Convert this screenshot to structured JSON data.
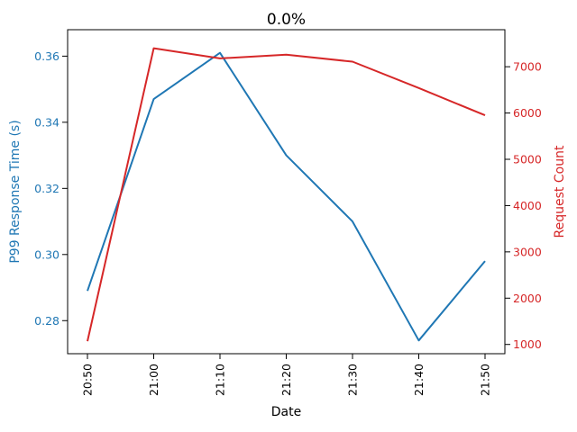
{
  "title": "0.0%",
  "chart_data": {
    "type": "line",
    "title": "0.0%",
    "xlabel": "Date",
    "grid": false,
    "legend": "none",
    "categories": [
      "20:50",
      "21:00",
      "21:10",
      "21:20",
      "21:30",
      "21:40",
      "21:50"
    ],
    "left_axis": {
      "label": "P99 Response Time (s)",
      "color": "#1f77b4",
      "ticks": [
        0.28,
        0.3,
        0.32,
        0.34,
        0.36
      ],
      "tick_labels": [
        "0.28",
        "0.30",
        "0.32",
        "0.34",
        "0.36"
      ],
      "ylim": [
        0.27,
        0.368
      ]
    },
    "right_axis": {
      "label": "Request Count",
      "color": "#d62728",
      "ticks": [
        1000,
        2000,
        3000,
        4000,
        5000,
        6000,
        7000
      ],
      "tick_labels": [
        "1000",
        "2000",
        "3000",
        "4000",
        "5000",
        "6000",
        "7000"
      ],
      "ylim": [
        800,
        7800
      ]
    },
    "series": [
      {
        "name": "P99 Response Time (s)",
        "axis": "left",
        "color": "#1f77b4",
        "values": [
          0.289,
          0.347,
          0.361,
          0.33,
          0.31,
          0.274,
          0.298
        ]
      },
      {
        "name": "Request Count",
        "axis": "right",
        "color": "#d62728",
        "values": [
          1070,
          7400,
          7180,
          7260,
          7110,
          6540,
          5950
        ]
      }
    ],
    "style": {
      "spine_color": "#000000",
      "title_color": "#000000",
      "x_tick_color": "#000000",
      "line_width": 2
    }
  }
}
